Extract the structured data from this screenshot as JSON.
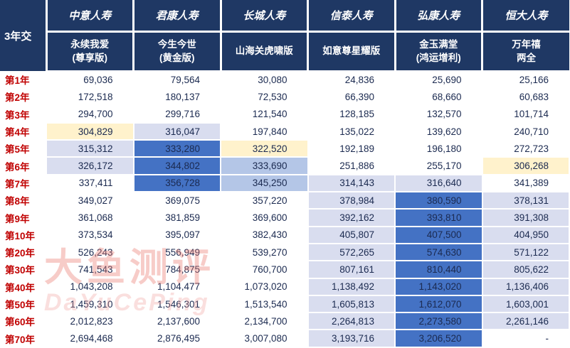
{
  "corner_label": "3年交",
  "columns": [
    {
      "company": "中意人寿",
      "product_lines": [
        "永续我爱",
        "(尊享版)"
      ]
    },
    {
      "company": "君康人寿",
      "product_lines": [
        "今生今世",
        "(黄金版)"
      ]
    },
    {
      "company": "长城人寿",
      "product_lines": [
        "山海关虎啸版"
      ]
    },
    {
      "company": "信泰人寿",
      "product_lines": [
        "如意尊星耀版"
      ]
    },
    {
      "company": "弘康人寿",
      "product_lines": [
        "金玉满堂",
        "(鸿运增利)"
      ]
    },
    {
      "company": "恒大人寿",
      "product_lines": [
        "万年禧",
        "两全"
      ]
    }
  ],
  "rows": [
    {
      "label": "第1年",
      "values": [
        "69,036",
        "79,564",
        "30,080",
        "24,836",
        "25,690",
        "25,166"
      ],
      "highlights": [
        "",
        "",
        "",
        "",
        "",
        ""
      ]
    },
    {
      "label": "第2年",
      "values": [
        "172,518",
        "180,137",
        "72,530",
        "66,390",
        "68,660",
        "60,683"
      ],
      "highlights": [
        "",
        "",
        "",
        "",
        "",
        ""
      ]
    },
    {
      "label": "第3年",
      "values": [
        "294,700",
        "299,716",
        "121,540",
        "128,185",
        "132,570",
        "101,714"
      ],
      "highlights": [
        "",
        "",
        "",
        "",
        "",
        ""
      ]
    },
    {
      "label": "第4年",
      "values": [
        "304,829",
        "316,047",
        "197,840",
        "135,022",
        "139,620",
        "240,710"
      ],
      "highlights": [
        "cream",
        "light",
        "",
        "",
        "",
        ""
      ]
    },
    {
      "label": "第5年",
      "values": [
        "315,312",
        "333,280",
        "322,520",
        "192,189",
        "196,180",
        "272,723"
      ],
      "highlights": [
        "light",
        "blue",
        "cream",
        "",
        "",
        ""
      ]
    },
    {
      "label": "第6年",
      "values": [
        "326,172",
        "344,802",
        "333,690",
        "251,886",
        "255,170",
        "306,268"
      ],
      "highlights": [
        "light",
        "blue",
        "mid",
        "",
        "",
        "cream"
      ]
    },
    {
      "label": "第7年",
      "values": [
        "337,411",
        "356,728",
        "345,250",
        "314,143",
        "316,640",
        "341,389"
      ],
      "highlights": [
        "",
        "blue",
        "mid",
        "light",
        "light",
        ""
      ]
    },
    {
      "label": "第8年",
      "values": [
        "349,027",
        "369,075",
        "357,220",
        "378,984",
        "380,590",
        "378,131"
      ],
      "highlights": [
        "",
        "",
        "",
        "light",
        "blue",
        "light"
      ]
    },
    {
      "label": "第9年",
      "values": [
        "361,068",
        "381,859",
        "369,600",
        "392,162",
        "393,810",
        "391,308"
      ],
      "highlights": [
        "",
        "",
        "",
        "light",
        "blue",
        "light"
      ]
    },
    {
      "label": "第10年",
      "values": [
        "373,534",
        "395,097",
        "382,430",
        "405,807",
        "407,500",
        "404,950"
      ],
      "highlights": [
        "",
        "",
        "",
        "light",
        "blue",
        "light"
      ]
    },
    {
      "label": "第20年",
      "values": [
        "526,243",
        "556,949",
        "539,270",
        "572,265",
        "574,630",
        "571,122"
      ],
      "highlights": [
        "",
        "",
        "",
        "light",
        "blue",
        "light"
      ]
    },
    {
      "label": "第30年",
      "values": [
        "741,543",
        "784,875",
        "760,700",
        "807,161",
        "810,440",
        "805,622"
      ],
      "highlights": [
        "",
        "",
        "",
        "light",
        "blue",
        "light"
      ]
    },
    {
      "label": "第40年",
      "values": [
        "1,043,208",
        "1,104,477",
        "1,073,020",
        "1,138,492",
        "1,143,020",
        "1,136,406"
      ],
      "highlights": [
        "",
        "",
        "",
        "light",
        "blue",
        "light"
      ]
    },
    {
      "label": "第50年",
      "values": [
        "1,459,310",
        "1,546,301",
        "1,513,540",
        "1,605,813",
        "1,612,070",
        "1,603,001"
      ],
      "highlights": [
        "",
        "",
        "",
        "light",
        "blue",
        "light"
      ]
    },
    {
      "label": "第60年",
      "values": [
        "2,012,823",
        "2,137,600",
        "2,134,700",
        "2,264,813",
        "2,273,580",
        "2,261,146"
      ],
      "highlights": [
        "",
        "",
        "",
        "light",
        "blue",
        "light"
      ]
    },
    {
      "label": "第70年",
      "values": [
        "2,694,468",
        "2,876,495",
        "3,007,080",
        "3,193,716",
        "3,206,520",
        "-"
      ],
      "highlights": [
        "",
        "",
        "",
        "light",
        "blue",
        ""
      ]
    }
  ],
  "watermark": {
    "line1": "大鱼测评",
    "line2": "DaYuCePing"
  },
  "colors": {
    "header_bg": "#1F3864",
    "row_label_text": "#C00000",
    "value_text": "#1b2a50",
    "highlight_cream": "#FFF2CC",
    "highlight_light": "#D9DDEF",
    "highlight_mid": "#B4C6E7",
    "highlight_blue": "#4472C4"
  }
}
